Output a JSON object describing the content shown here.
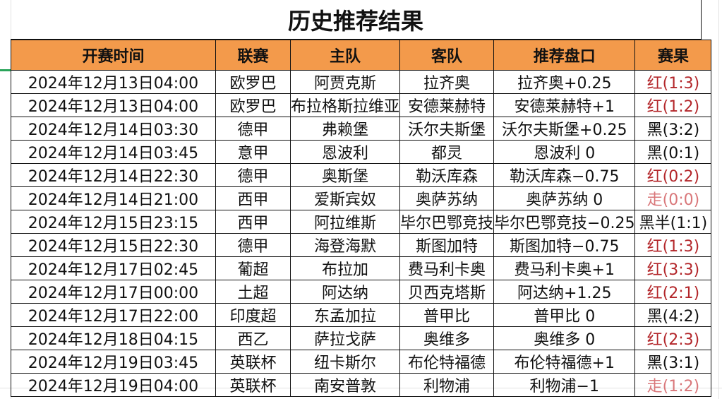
{
  "title": "历史推荐结果",
  "columns": [
    "开赛时间",
    "联赛",
    "主队",
    "客队",
    "推荐盘口",
    "赛果"
  ],
  "colors": {
    "header_bg": "#f39a4b",
    "win": "#b3262a",
    "push": "#d9777a",
    "loss": "#111111"
  },
  "rows": [
    {
      "time": "2024年12月13日04:00",
      "league": "欧罗巴",
      "home": "阿贾克斯",
      "away": "拉齐奥",
      "pick": "拉齐奥+0.25",
      "result": "红(1:3)",
      "status": "win"
    },
    {
      "time": "2024年12月13日04:00",
      "league": "欧罗巴",
      "home": "布拉格斯拉维亚",
      "away": "安德莱赫特",
      "pick": "安德莱赫特+1",
      "result": "红(1:2)",
      "status": "win"
    },
    {
      "time": "2024年12月14日03:30",
      "league": "德甲",
      "home": "弗赖堡",
      "away": "沃尔夫斯堡",
      "pick": "沃尔夫斯堡+0.25",
      "result": "黑(3:2)",
      "status": "loss"
    },
    {
      "time": "2024年12月14日03:45",
      "league": "意甲",
      "home": "恩波利",
      "away": "都灵",
      "pick": "恩波利 0",
      "result": "黑(0:1)",
      "status": "loss"
    },
    {
      "time": "2024年12月14日22:30",
      "league": "德甲",
      "home": "奥斯堡",
      "away": "勒沃库森",
      "pick": "勒沃库森−0.75",
      "result": "红(0:2)",
      "status": "win"
    },
    {
      "time": "2024年12月14日21:00",
      "league": "西甲",
      "home": "爱斯宾奴",
      "away": "奥萨苏纳",
      "pick": "奥萨苏纳 0",
      "result": "走(0:0)",
      "status": "push"
    },
    {
      "time": "2024年12月15日23:15",
      "league": "西甲",
      "home": "阿拉维斯",
      "away": "毕尔巴鄂竞技",
      "pick": "毕尔巴鄂竞技−0.25",
      "result": "黑半(1:1)",
      "status": "loss"
    },
    {
      "time": "2024年12月15日22:30",
      "league": "德甲",
      "home": "海登海默",
      "away": "斯图加特",
      "pick": "斯图加特−0.75",
      "result": "红(1:3)",
      "status": "win"
    },
    {
      "time": "2024年12月17日02:45",
      "league": "葡超",
      "home": "布拉加",
      "away": "费马利卡奥",
      "pick": "费马利卡奥+1",
      "result": "红(3:3)",
      "status": "win"
    },
    {
      "time": "2024年12月17日00:00",
      "league": "土超",
      "home": "阿达纳",
      "away": "贝西克塔斯",
      "pick": "阿达纳+1.25",
      "result": "红(2:1)",
      "status": "win"
    },
    {
      "time": "2024年12月17日22:00",
      "league": "印度超",
      "home": "东孟加拉",
      "away": "普甲比",
      "pick": "普甲比 0",
      "result": "黑(4:2)",
      "status": "loss"
    },
    {
      "time": "2024年12月18日04:15",
      "league": "西乙",
      "home": "萨拉戈萨",
      "away": "奥维多",
      "pick": "奥维多 0",
      "result": "红(2:3)",
      "status": "win"
    },
    {
      "time": "2024年12月19日03:45",
      "league": "英联杯",
      "home": "纽卡斯尔",
      "away": "布伦特福德",
      "pick": "布伦特福德+1",
      "result": "黑(3:1)",
      "status": "loss"
    },
    {
      "time": "2024年12月19日04:00",
      "league": "英联杯",
      "home": "南安普敦",
      "away": "利物浦",
      "pick": "利物浦−1",
      "result": "走(1:2)",
      "status": "push"
    }
  ]
}
